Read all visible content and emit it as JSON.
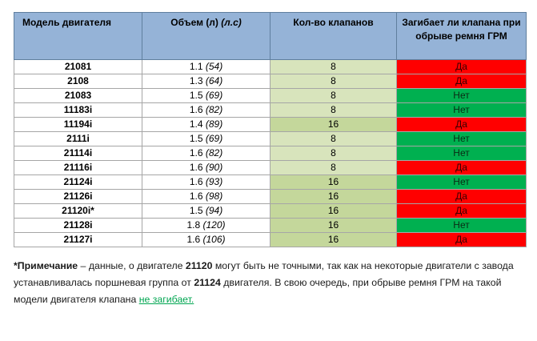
{
  "table": {
    "headers": {
      "model": "Модель двигателя",
      "volume_main": "Объем (л)",
      "volume_hp": "(л.с)",
      "valves": "Кол-во клапанов",
      "bend": "Загибает ли клапана при обрыве ремня ГРМ"
    },
    "rows": [
      {
        "model": "21081",
        "volume": "1.1",
        "hp": "(54)",
        "valves": "8",
        "bend": "Да"
      },
      {
        "model": "2108",
        "volume": "1.3",
        "hp": "(64)",
        "valves": "8",
        "bend": "Да"
      },
      {
        "model": "21083",
        "volume": "1.5",
        "hp": "(69)",
        "valves": "8",
        "bend": "Нет"
      },
      {
        "model": "11183i",
        "volume": "1.6",
        "hp": "(82)",
        "valves": "8",
        "bend": "Нет"
      },
      {
        "model": "11194i",
        "volume": "1.4",
        "hp": "(89)",
        "valves": "16",
        "bend": "Да"
      },
      {
        "model": "2111i",
        "volume": "1.5",
        "hp": "(69)",
        "valves": "8",
        "bend": "Нет"
      },
      {
        "model": "21114i",
        "volume": "1.6",
        "hp": "(82)",
        "valves": "8",
        "bend": "Нет"
      },
      {
        "model": "21116i",
        "volume": "1.6",
        "hp": "(90)",
        "valves": "8",
        "bend": "Да"
      },
      {
        "model": "21124i",
        "volume": "1.6",
        "hp": "(93)",
        "valves": "16",
        "bend": "Нет"
      },
      {
        "model": "21126i",
        "volume": "1.6",
        "hp": "(98)",
        "valves": "16",
        "bend": "Да"
      },
      {
        "model": "21120i*",
        "volume": "1.5",
        "hp": "(94)",
        "valves": "16",
        "bend": "Да"
      },
      {
        "model": "21128i",
        "volume": "1.8",
        "hp": "(120)",
        "valves": "16",
        "bend": "Нет"
      },
      {
        "model": "21127i",
        "volume": "1.6",
        "hp": "(106)",
        "valves": "16",
        "bend": "Да"
      }
    ],
    "colors": {
      "header_bg": "#95b3d7",
      "valves_8_bg": "#d8e4bc",
      "valves_16_bg": "#c4d79b",
      "bend_yes_bg": "#ff0000",
      "bend_no_bg": "#00b050"
    }
  },
  "note": {
    "star": "*",
    "label": "Примечание",
    "text1": " – данные, о двигателе ",
    "engine1": "21120",
    "text2": " могут быть не точными, так как на некоторые двигатели с завода устанавливалась поршневая группа от ",
    "engine2": "21124",
    "text3": " двигателя. В свою очередь, при обрыве ремня ГРМ на такой модели двигателя клапана ",
    "link": "не загибает."
  }
}
